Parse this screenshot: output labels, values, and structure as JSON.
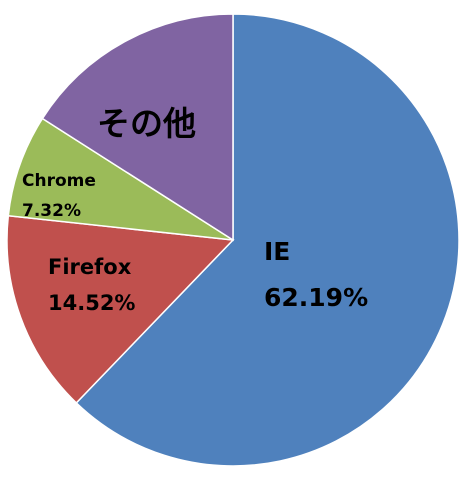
{
  "chart_data": {
    "type": "pie",
    "title": "",
    "start_angle_deg": 0,
    "direction": "clockwise",
    "legend": "none",
    "slices": [
      {
        "name": "IE",
        "value": 62.19,
        "label": "62.19%",
        "color": "#4F81BD"
      },
      {
        "name": "Firefox",
        "value": 14.52,
        "label": "14.52%",
        "color": "#C0504D"
      },
      {
        "name": "Chrome",
        "value": 7.32,
        "label": "7.32%",
        "color": "#9BBB59"
      },
      {
        "name": "その他",
        "value": 15.97,
        "label": "",
        "color": "#8064A2"
      }
    ]
  }
}
